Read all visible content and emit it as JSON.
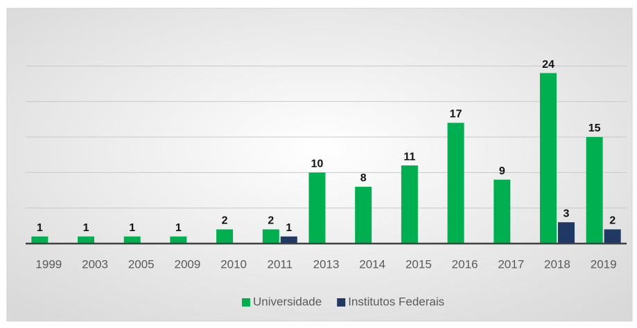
{
  "chart_data": {
    "type": "bar",
    "categories": [
      "1999",
      "2003",
      "2005",
      "2009",
      "2010",
      "2011",
      "2013",
      "2014",
      "2015",
      "2016",
      "2017",
      "2018",
      "2019"
    ],
    "series": [
      {
        "name": "Universidade",
        "color": "#00b050",
        "values": [
          1,
          1,
          1,
          1,
          2,
          2,
          10,
          8,
          11,
          17,
          9,
          24,
          15
        ]
      },
      {
        "name": "Institutos Federais",
        "color": "#1f3864",
        "values": [
          null,
          null,
          null,
          null,
          null,
          1,
          null,
          null,
          null,
          null,
          null,
          3,
          2
        ]
      }
    ],
    "ylim": [
      0,
      30
    ],
    "yticks": [
      0,
      5,
      10,
      15,
      20,
      25
    ],
    "grid": true,
    "legend": "bottom"
  }
}
